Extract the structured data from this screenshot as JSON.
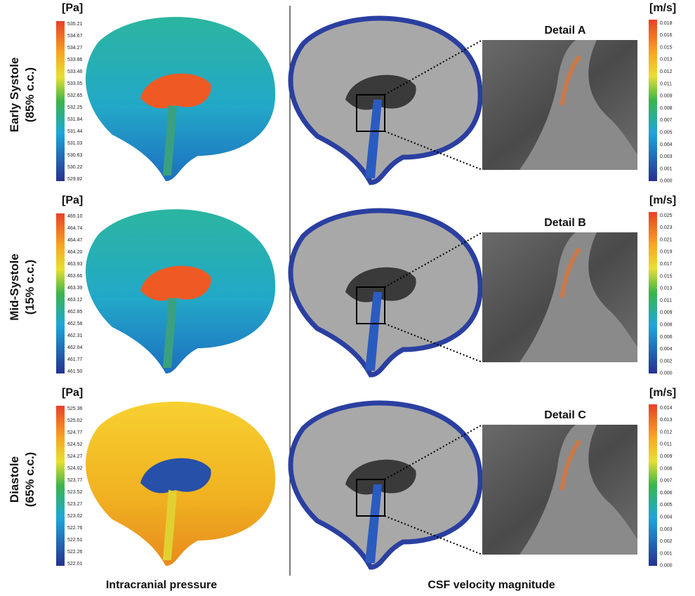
{
  "rows": [
    {
      "label": "Early Systole",
      "sublabel": "(85% c.c.)",
      "pressure_unit": "[Pa]",
      "pressure_ticks": [
        "535.21",
        "534.67",
        "534.27",
        "533.86",
        "533.46",
        "533.05",
        "532.65",
        "532.25",
        "531.84",
        "531.44",
        "531.03",
        "530.63",
        "530.22",
        "529.82"
      ],
      "detail_title": "Detail A",
      "velocity_unit": "[m/s]",
      "velocity_ticks": [
        "0.018",
        "0.016",
        "0.015",
        "0.013",
        "0.012",
        "0.011",
        "0.009",
        "0.008",
        "0.007",
        "0.005",
        "0.004",
        "0.003",
        "0.001",
        "0.000"
      ]
    },
    {
      "label": "Mid-Systole",
      "sublabel": "(15% c.c.)",
      "pressure_unit": "[Pa]",
      "pressure_ticks": [
        "465.10",
        "464.74",
        "464.47",
        "464.20",
        "463.93",
        "463.66",
        "463.39",
        "463.12",
        "462.85",
        "462.58",
        "462.31",
        "462.04",
        "461.77",
        "461.50"
      ],
      "detail_title": "Detail B",
      "velocity_unit": "[m/s]",
      "velocity_ticks": [
        "0.025",
        "0.023",
        "0.021",
        "0.019",
        "0.017",
        "0.015",
        "0.013",
        "0.011",
        "0.009",
        "0.008",
        "0.006",
        "0.004",
        "0.002",
        "0.000"
      ]
    },
    {
      "label": "Diastole",
      "sublabel": "(65% c.c.)",
      "pressure_unit": "[Pa]",
      "pressure_ticks": [
        "525.36",
        "525.02",
        "524.77",
        "524.52",
        "524.27",
        "524.02",
        "523.77",
        "523.52",
        "523.27",
        "523.02",
        "522.76",
        "522.51",
        "522.26",
        "522.01"
      ],
      "detail_title": "Detail C",
      "velocity_unit": "[m/s]",
      "velocity_ticks": [
        "0.014",
        "0.013",
        "0.012",
        "0.011",
        "0.009",
        "0.008",
        "0.007",
        "0.006",
        "0.005",
        "0.004",
        "0.003",
        "0.002",
        "0.001",
        "0.000"
      ]
    }
  ],
  "captions": {
    "pressure": "Intracranial pressure",
    "velocity": "CSF velocity magnitude"
  }
}
